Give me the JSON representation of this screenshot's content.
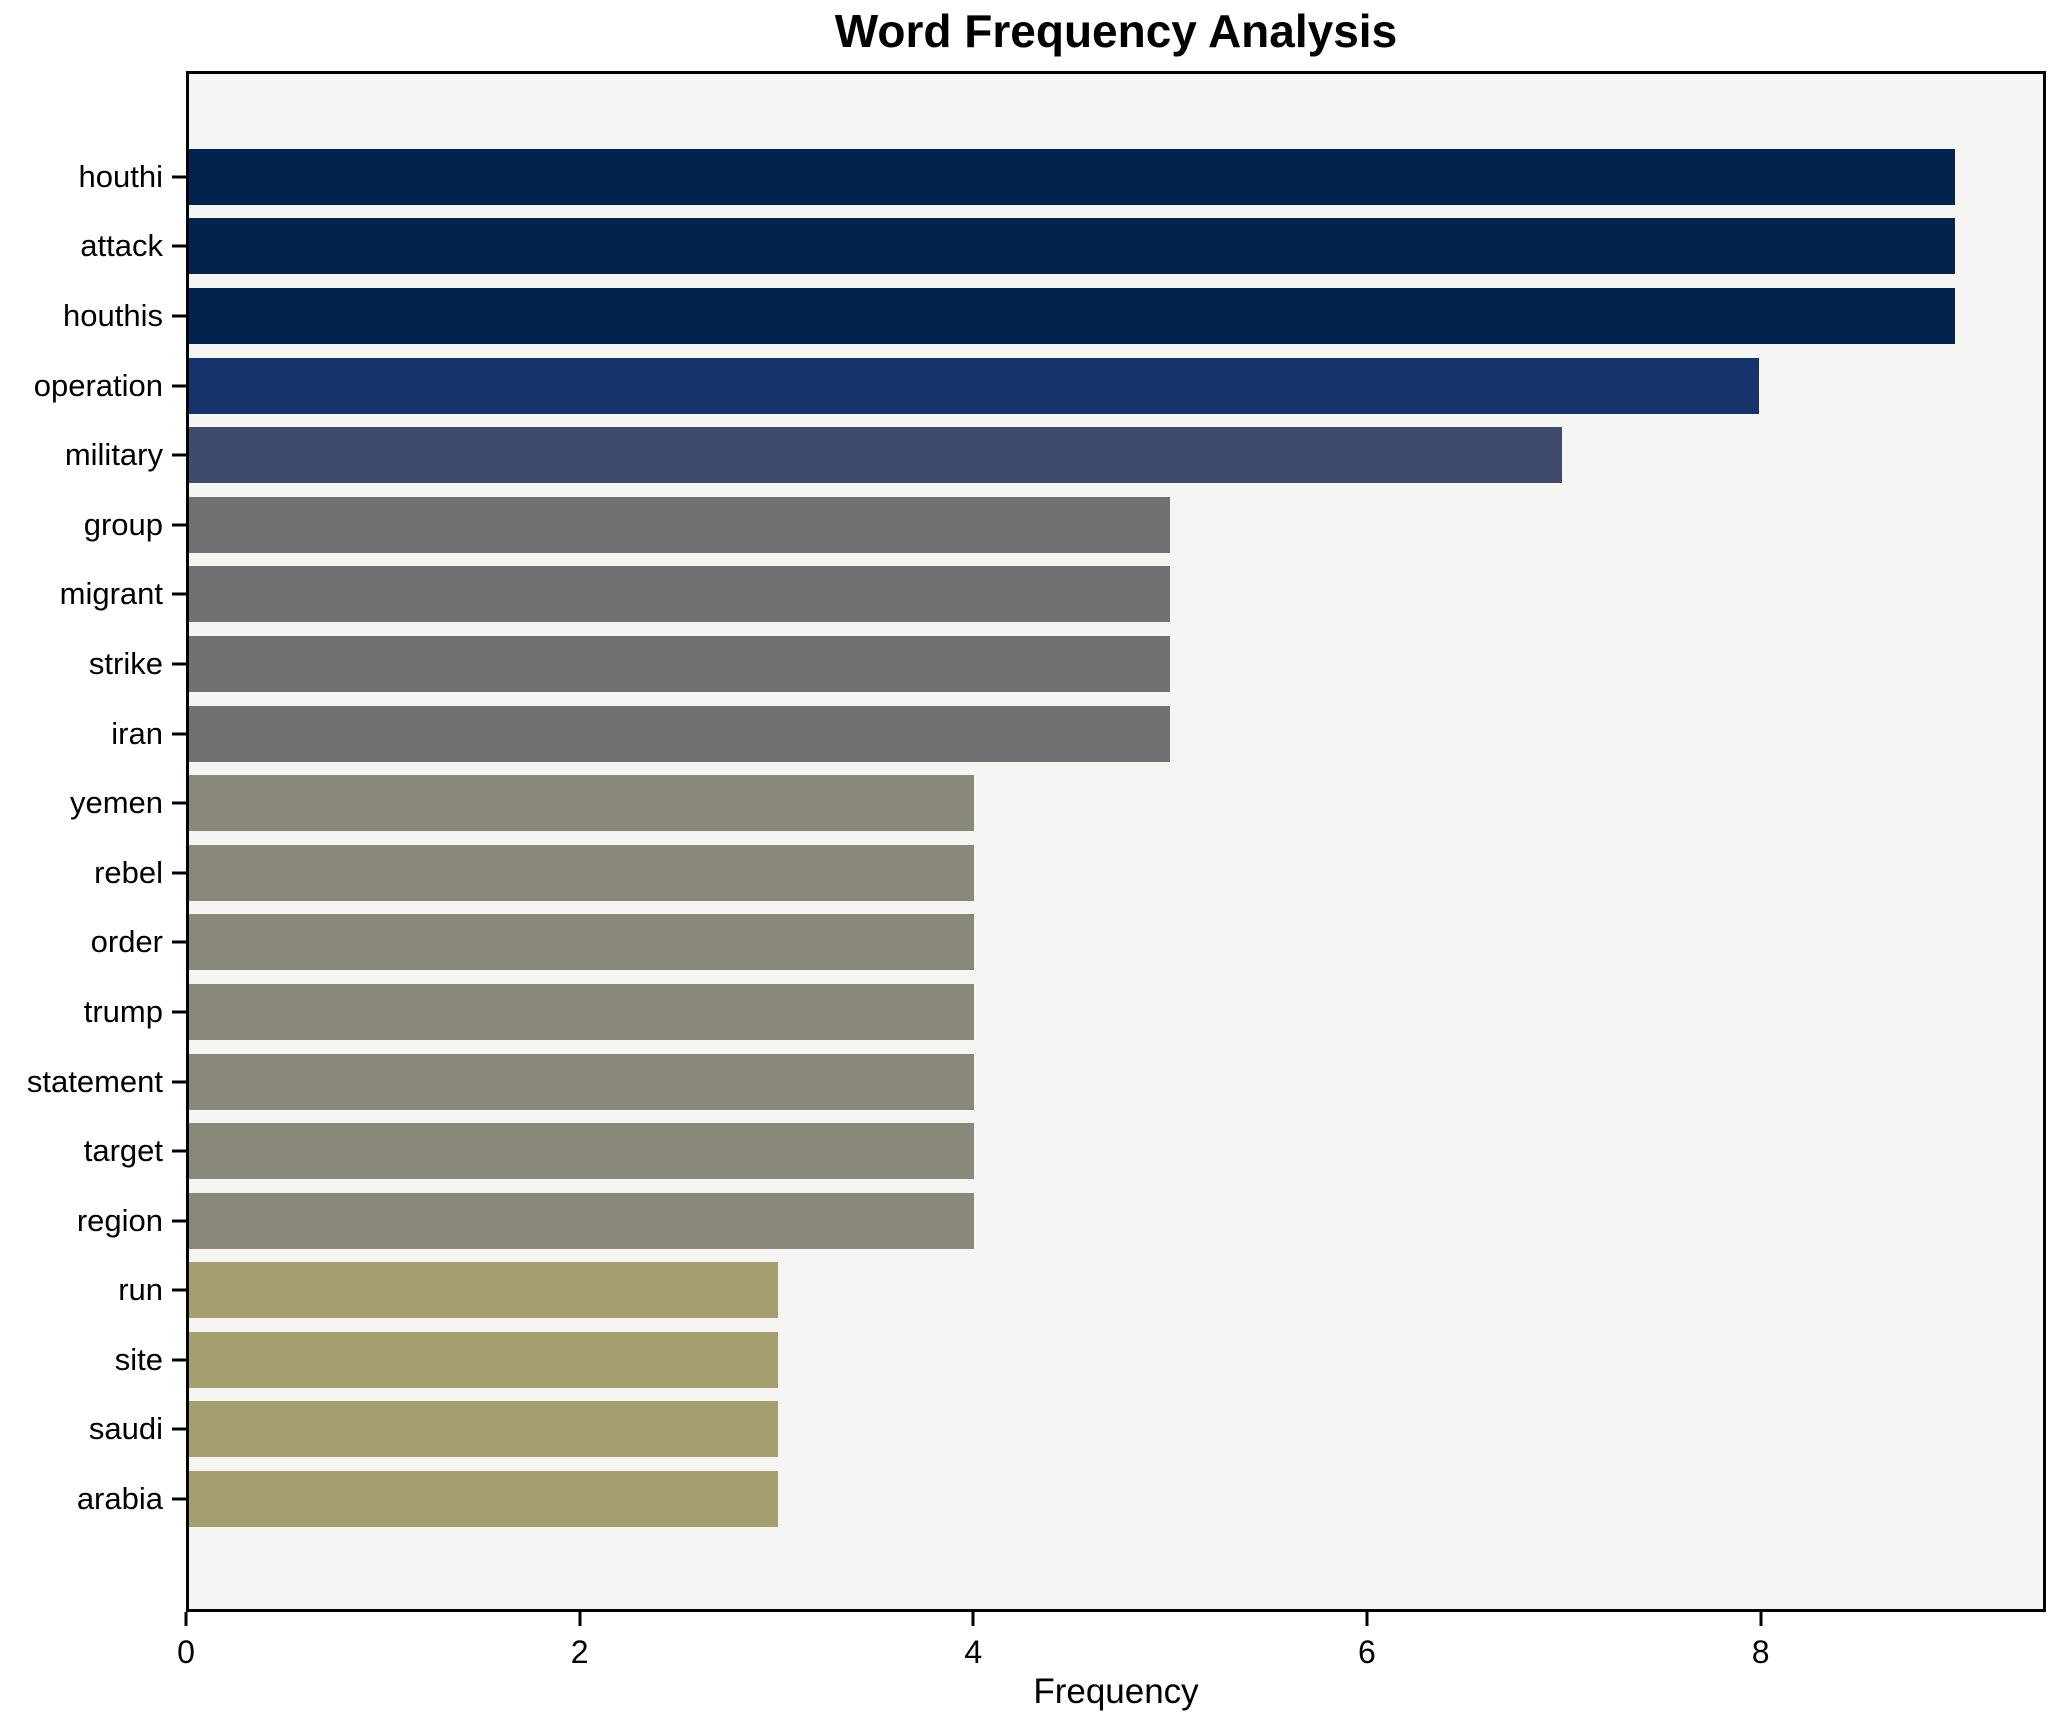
{
  "title": "Word Frequency Analysis",
  "xlabel": "Frequency",
  "colors": {
    "figure_bg": "#ffffff",
    "plot_bg": "#f5f5f4",
    "axis": "#000000",
    "text": "#000000"
  },
  "chart_data": {
    "type": "bar",
    "orientation": "horizontal",
    "title": "Word Frequency Analysis",
    "xlabel": "Frequency",
    "ylabel": "",
    "grid": false,
    "legend": false,
    "xlim": [
      0,
      9.45
    ],
    "x_ticks": [
      0,
      2,
      4,
      6,
      8
    ],
    "categories": [
      "houthi",
      "attack",
      "houthis",
      "operation",
      "military",
      "group",
      "migrant",
      "strike",
      "iran",
      "yemen",
      "rebel",
      "order",
      "trump",
      "statement",
      "target",
      "region",
      "run",
      "site",
      "saudi",
      "arabia"
    ],
    "values": [
      9,
      9,
      9,
      8,
      7,
      5,
      5,
      5,
      5,
      4,
      4,
      4,
      4,
      4,
      4,
      4,
      3,
      3,
      3,
      3
    ],
    "bar_colors": [
      "#02234e",
      "#02234e",
      "#02234e",
      "#16336c",
      "#3e4b6c",
      "#6f7173",
      "#6f7173",
      "#6f7173",
      "#6f7173",
      "#8a8878",
      "#8a8878",
      "#8a8878",
      "#8a8878",
      "#8a8878",
      "#8a8878",
      "#8a8878",
      "#a69d71",
      "#a69d71",
      "#a69d71",
      "#a69d71"
    ]
  }
}
